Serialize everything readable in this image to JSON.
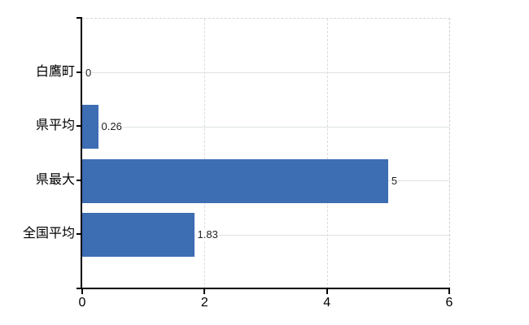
{
  "chart_data": {
    "type": "bar",
    "orientation": "horizontal",
    "title": "",
    "xlabel": "",
    "ylabel": "",
    "categories": [
      "白鷹町",
      "県平均",
      "県最大",
      "全国平均"
    ],
    "values": [
      0,
      0.26,
      5,
      1.83
    ],
    "value_labels": [
      "0",
      "0.26",
      "5",
      "1.83"
    ],
    "xlim": [
      0,
      6
    ],
    "x_ticks": [
      0,
      2,
      4,
      6
    ],
    "x_tick_labels": [
      "0",
      "2",
      "4",
      "6"
    ],
    "grid_horizontal": true,
    "grid_vertical": true,
    "legend": false,
    "colors": {
      "bar": "#3d6db3",
      "gridline": "#dde3dd",
      "dashed_border": "#ddd4d8",
      "axis": "#000000",
      "text": "#000000",
      "background": "#ffffff"
    }
  }
}
